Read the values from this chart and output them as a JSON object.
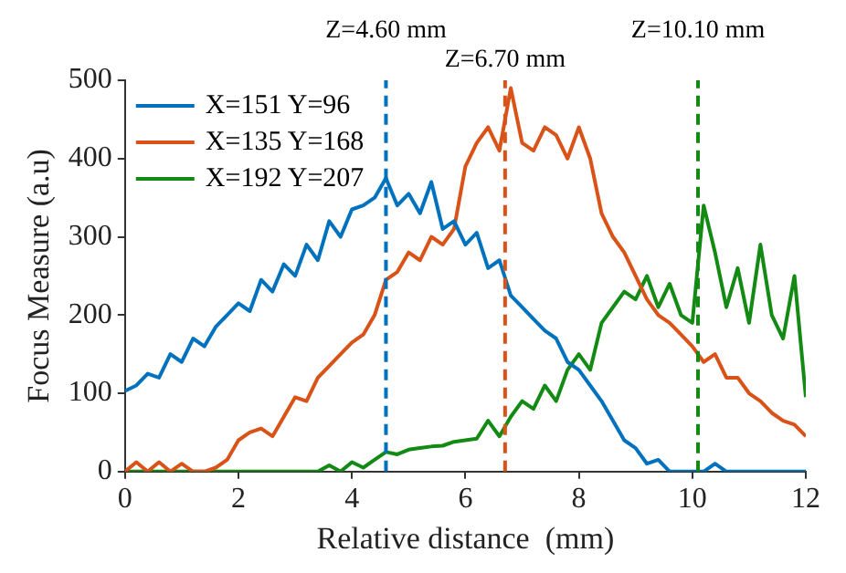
{
  "chart_data": {
    "type": "line",
    "xlabel": "Relative distance  (mm)",
    "ylabel": "Focus Measure (a.u)",
    "xlim": [
      0,
      12
    ],
    "xticks": [
      0,
      2,
      4,
      6,
      8,
      10,
      12
    ],
    "ylim": [
      0,
      500
    ],
    "yticks": [
      0,
      100,
      200,
      300,
      400,
      500
    ],
    "grid": false,
    "legend": "top left",
    "marker": "none",
    "line_style": "solid",
    "x": [
      0,
      0.2,
      0.4,
      0.6,
      0.8,
      1.0,
      1.2,
      1.4,
      1.6,
      1.8,
      2.0,
      2.2,
      2.4,
      2.6,
      2.8,
      3.0,
      3.2,
      3.4,
      3.6,
      3.8,
      4.0,
      4.2,
      4.4,
      4.6,
      4.8,
      5.0,
      5.2,
      5.4,
      5.6,
      5.8,
      6.0,
      6.2,
      6.4,
      6.6,
      6.8,
      7.0,
      7.2,
      7.4,
      7.6,
      7.8,
      8.0,
      8.2,
      8.4,
      8.6,
      8.8,
      9.0,
      9.2,
      9.4,
      9.6,
      9.8,
      10.0,
      10.2,
      10.4,
      10.6,
      10.8,
      11.0,
      11.2,
      11.4,
      11.6,
      11.8,
      12.0
    ],
    "series": [
      {
        "name": "X=151 Y=96",
        "color": "#0072bd",
        "values": [
          103,
          110,
          125,
          120,
          150,
          140,
          170,
          160,
          185,
          200,
          215,
          205,
          245,
          230,
          265,
          250,
          290,
          270,
          320,
          300,
          335,
          340,
          350,
          375,
          340,
          355,
          330,
          370,
          310,
          320,
          290,
          305,
          260,
          270,
          225,
          210,
          195,
          180,
          170,
          140,
          130,
          110,
          90,
          65,
          40,
          30,
          10,
          15,
          0,
          0,
          0,
          0,
          10,
          0,
          0,
          0,
          0,
          0,
          0,
          0,
          0
        ]
      },
      {
        "name": "X=135 Y=168",
        "color": "#d95319",
        "values": [
          0,
          12,
          0,
          12,
          0,
          10,
          0,
          0,
          5,
          15,
          40,
          50,
          55,
          45,
          70,
          95,
          90,
          120,
          135,
          150,
          165,
          175,
          200,
          245,
          255,
          280,
          270,
          300,
          290,
          310,
          390,
          420,
          440,
          410,
          490,
          420,
          410,
          440,
          430,
          400,
          440,
          400,
          330,
          300,
          280,
          250,
          220,
          200,
          190,
          175,
          160,
          140,
          150,
          120,
          120,
          100,
          90,
          75,
          65,
          60,
          45
        ]
      },
      {
        "name": "X=192 Y=207",
        "color": "#138a13",
        "values": [
          0,
          0,
          0,
          0,
          0,
          0,
          0,
          0,
          0,
          0,
          0,
          0,
          0,
          0,
          0,
          0,
          0,
          0,
          8,
          0,
          12,
          5,
          15,
          25,
          22,
          28,
          30,
          32,
          33,
          38,
          40,
          42,
          65,
          45,
          70,
          90,
          80,
          110,
          90,
          130,
          150,
          130,
          190,
          210,
          230,
          220,
          250,
          210,
          240,
          200,
          190,
          340,
          280,
          210,
          260,
          190,
          290,
          200,
          170,
          250,
          95
        ]
      }
    ],
    "ref_lines": [
      {
        "axis": "x",
        "value": 4.6,
        "label": "Z=4.60 mm",
        "color": "#0072bd",
        "line_style": "dashed"
      },
      {
        "axis": "x",
        "value": 6.7,
        "label": "Z=6.70 mm",
        "color": "#d95319",
        "line_style": "dashed"
      },
      {
        "axis": "x",
        "value": 10.1,
        "label": "Z=10.10 mm",
        "color": "#138a13",
        "line_style": "dashed"
      }
    ]
  }
}
